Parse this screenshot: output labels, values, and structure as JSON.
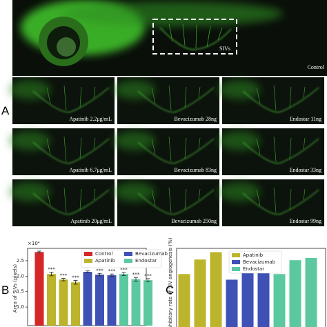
{
  "panels": {
    "a": "A",
    "b": "B",
    "c": "C"
  },
  "control_image": {
    "roi_label": "SIVs",
    "caption": "Control"
  },
  "treatment_images": [
    [
      "Apatinib 2.2μg/mL",
      "Bevacizumab 28ng",
      "Endostar 11ng"
    ],
    [
      "Apatinib 6.7μg/mL",
      "Bevacizumab 83ng",
      "Endostar 33ng"
    ],
    [
      "Apatinib 20μg/mL",
      "Bevacizumab 250ng",
      "Endostar 99ng"
    ]
  ],
  "chart_data": [
    {
      "type": "bar",
      "ylabel": "Area of SIVs (pixels)",
      "offset_label": "×10⁴",
      "ylim": [
        0.4,
        2.9
      ],
      "yticks": [
        {
          "value": 1.0,
          "label": "1.0"
        },
        {
          "value": 1.5,
          "label": "1.5"
        },
        {
          "value": 2.0,
          "label": "2.0"
        },
        {
          "value": 2.5,
          "label": "2.5"
        }
      ],
      "series": [
        {
          "name": "Control",
          "color": "#d62728",
          "values": [
            2.78
          ],
          "errors": [
            0.03
          ]
        },
        {
          "name": "Apatinib",
          "color": "#bcb42a",
          "values": [
            2.07,
            1.89,
            1.8
          ],
          "errors": [
            0.06,
            0.04,
            0.06
          ],
          "value_labels": [
            "***",
            "***",
            "***"
          ]
        },
        {
          "name": "Bevacizumab",
          "color": "#3f51b5",
          "values": [
            2.14,
            2.05,
            2.03
          ],
          "errors": [
            0.03,
            0.04,
            0.04
          ],
          "value_labels": [
            "***",
            "***",
            "***"
          ]
        },
        {
          "name": "Endostar",
          "color": "#5cc8a0",
          "values": [
            2.07,
            1.9,
            1.87
          ],
          "errors": [
            0.05,
            0.06,
            0.05
          ],
          "value_labels": [
            "***",
            "***",
            "***"
          ]
        }
      ]
    },
    {
      "type": "bar",
      "ylabel": "Inhibitory rate of SIV angiogenesis (%)",
      "ylim": [
        0,
        37
      ],
      "series": [
        {
          "name": "Apatinib",
          "color": "#bcb42a",
          "values": [
            25.5,
            32,
            35.3
          ]
        },
        {
          "name": "Bevacizumab",
          "color": "#3f51b5",
          "values": [
            23,
            26.3,
            27
          ]
        },
        {
          "name": "Endostar",
          "color": "#5cc8a0",
          "values": [
            25.5,
            31.7,
            32.7
          ]
        }
      ]
    }
  ]
}
